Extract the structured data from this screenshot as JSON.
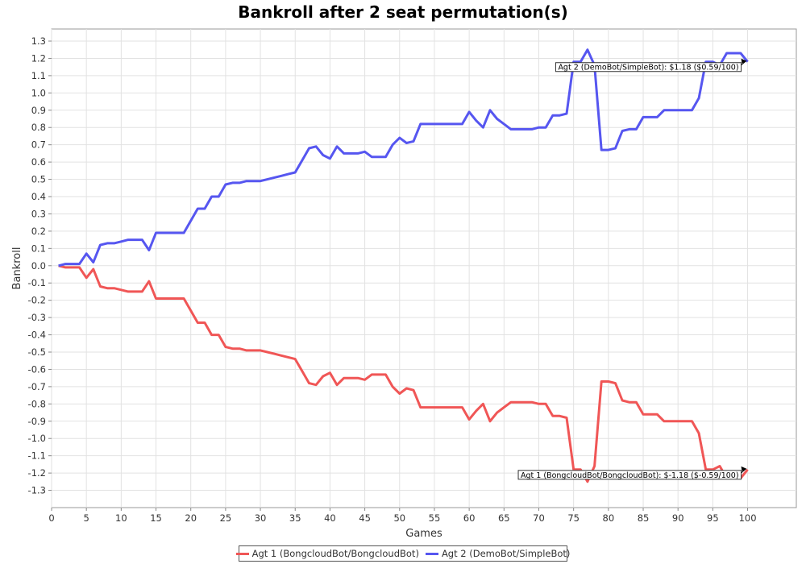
{
  "chart_data": {
    "type": "line",
    "title": "Bankroll after 2 seat permutation(s)",
    "xlabel": "Games",
    "ylabel": "Bankroll",
    "xlim": [
      0,
      107
    ],
    "ylim": [
      -1.4,
      1.37
    ],
    "xticks": [
      0,
      5,
      10,
      15,
      20,
      25,
      30,
      35,
      40,
      45,
      50,
      55,
      60,
      65,
      70,
      75,
      80,
      85,
      90,
      95,
      100
    ],
    "yticks": [
      1.3,
      1.2,
      1.1,
      1.0,
      0.9,
      0.8,
      0.7,
      0.6,
      0.5,
      0.4,
      0.3,
      0.2,
      0.1,
      0.0,
      -0.1,
      -0.2,
      -0.3,
      -0.4,
      -0.5,
      -0.6,
      -0.7,
      -0.8,
      -0.9,
      -1.0,
      -1.1,
      -1.2,
      -1.3
    ],
    "ytick_labels": [
      "1.3",
      "1.2",
      "1.1",
      "1.0",
      "0.9",
      "0.8",
      "0.7",
      "0.6",
      "0.5",
      "0.4",
      "0.3",
      "0.2",
      "0.1",
      "0.0",
      "-0.1",
      "-0.2",
      "-0.3",
      "-0.4",
      "-0.5",
      "-0.6",
      "-0.7",
      "-0.8",
      "-0.9",
      "-1.0",
      "-1.1",
      "-1.2",
      "-1.3"
    ],
    "grid": true,
    "legend_position": "bottom",
    "series": [
      {
        "name": "Agt 1 (BongcloudBot/BongcloudBot)",
        "color": "#f05656",
        "x": [
          1,
          2,
          3,
          4,
          5,
          6,
          7,
          8,
          9,
          10,
          11,
          12,
          13,
          14,
          15,
          16,
          17,
          18,
          19,
          20,
          21,
          22,
          23,
          24,
          25,
          26,
          27,
          28,
          29,
          30,
          31,
          32,
          33,
          34,
          35,
          36,
          37,
          38,
          39,
          40,
          41,
          42,
          43,
          44,
          45,
          46,
          47,
          48,
          49,
          50,
          51,
          52,
          53,
          54,
          55,
          56,
          57,
          58,
          59,
          60,
          61,
          62,
          63,
          64,
          65,
          66,
          67,
          68,
          69,
          70,
          71,
          72,
          73,
          74,
          75,
          76,
          77,
          78,
          79,
          80,
          81,
          82,
          83,
          84,
          85,
          86,
          87,
          88,
          89,
          90,
          91,
          92,
          93,
          94,
          95,
          96,
          97,
          98,
          99,
          100
        ],
        "y": [
          0.0,
          -0.01,
          -0.01,
          -0.01,
          -0.07,
          -0.02,
          -0.12,
          -0.13,
          -0.13,
          -0.14,
          -0.15,
          -0.15,
          -0.15,
          -0.09,
          -0.19,
          -0.19,
          -0.19,
          -0.19,
          -0.19,
          -0.26,
          -0.33,
          -0.33,
          -0.4,
          -0.4,
          -0.47,
          -0.48,
          -0.48,
          -0.49,
          -0.49,
          -0.49,
          -0.5,
          -0.51,
          -0.52,
          -0.53,
          -0.54,
          -0.61,
          -0.68,
          -0.69,
          -0.64,
          -0.62,
          -0.69,
          -0.65,
          -0.65,
          -0.65,
          -0.66,
          -0.63,
          -0.63,
          -0.63,
          -0.7,
          -0.74,
          -0.71,
          -0.72,
          -0.82,
          -0.82,
          -0.82,
          -0.82,
          -0.82,
          -0.82,
          -0.82,
          -0.89,
          -0.84,
          -0.8,
          -0.9,
          -0.85,
          -0.82,
          -0.79,
          -0.79,
          -0.79,
          -0.79,
          -0.8,
          -0.8,
          -0.87,
          -0.87,
          -0.88,
          -1.18,
          -1.18,
          -1.25,
          -1.16,
          -0.67,
          -0.67,
          -0.68,
          -0.78,
          -0.79,
          -0.79,
          -0.86,
          -0.86,
          -0.86,
          -0.9,
          -0.9,
          -0.9,
          -0.9,
          -0.9,
          -0.97,
          -1.18,
          -1.18,
          -1.16,
          -1.23,
          -1.23,
          -1.23,
          -1.18
        ]
      },
      {
        "name": "Agt 2 (DemoBot/SimpleBot)",
        "color": "#5656f0",
        "x": [
          1,
          2,
          3,
          4,
          5,
          6,
          7,
          8,
          9,
          10,
          11,
          12,
          13,
          14,
          15,
          16,
          17,
          18,
          19,
          20,
          21,
          22,
          23,
          24,
          25,
          26,
          27,
          28,
          29,
          30,
          31,
          32,
          33,
          34,
          35,
          36,
          37,
          38,
          39,
          40,
          41,
          42,
          43,
          44,
          45,
          46,
          47,
          48,
          49,
          50,
          51,
          52,
          53,
          54,
          55,
          56,
          57,
          58,
          59,
          60,
          61,
          62,
          63,
          64,
          65,
          66,
          67,
          68,
          69,
          70,
          71,
          72,
          73,
          74,
          75,
          76,
          77,
          78,
          79,
          80,
          81,
          82,
          83,
          84,
          85,
          86,
          87,
          88,
          89,
          90,
          91,
          92,
          93,
          94,
          95,
          96,
          97,
          98,
          99,
          100
        ],
        "y": [
          0.0,
          0.01,
          0.01,
          0.01,
          0.07,
          0.02,
          0.12,
          0.13,
          0.13,
          0.14,
          0.15,
          0.15,
          0.15,
          0.09,
          0.19,
          0.19,
          0.19,
          0.19,
          0.19,
          0.26,
          0.33,
          0.33,
          0.4,
          0.4,
          0.47,
          0.48,
          0.48,
          0.49,
          0.49,
          0.49,
          0.5,
          0.51,
          0.52,
          0.53,
          0.54,
          0.61,
          0.68,
          0.69,
          0.64,
          0.62,
          0.69,
          0.65,
          0.65,
          0.65,
          0.66,
          0.63,
          0.63,
          0.63,
          0.7,
          0.74,
          0.71,
          0.72,
          0.82,
          0.82,
          0.82,
          0.82,
          0.82,
          0.82,
          0.82,
          0.89,
          0.84,
          0.8,
          0.9,
          0.85,
          0.82,
          0.79,
          0.79,
          0.79,
          0.79,
          0.8,
          0.8,
          0.87,
          0.87,
          0.88,
          1.18,
          1.18,
          1.25,
          1.16,
          0.67,
          0.67,
          0.68,
          0.78,
          0.79,
          0.79,
          0.86,
          0.86,
          0.86,
          0.9,
          0.9,
          0.9,
          0.9,
          0.9,
          0.97,
          1.18,
          1.18,
          1.16,
          1.23,
          1.23,
          1.23,
          1.18
        ]
      }
    ],
    "annotations": [
      {
        "text": "Agt 2 (DemoBot/SimpleBot): $1.18 ($0.59/100)",
        "x": 100,
        "y": 1.18,
        "series": 1
      },
      {
        "text": "Agt 1 (BongcloudBot/BongcloudBot): $-1.18 ($-0.59/100)",
        "x": 100,
        "y": -1.18,
        "series": 0
      }
    ]
  }
}
